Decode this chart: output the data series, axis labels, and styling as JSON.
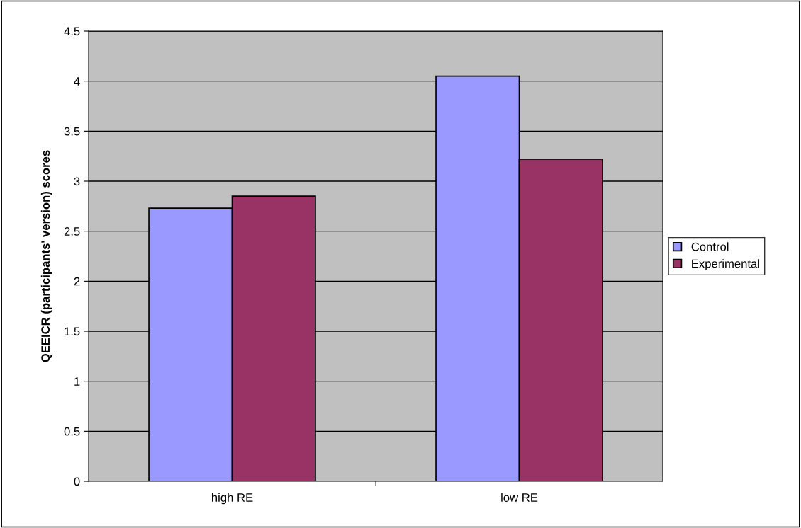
{
  "chart_data": {
    "type": "bar",
    "ylabel": "QEEICR (participants' version) scores",
    "categories": [
      "high RE",
      "low RE"
    ],
    "series": [
      {
        "name": "Control",
        "color": "#9999ff",
        "values": [
          2.73,
          4.05
        ]
      },
      {
        "name": "Experimental",
        "color": "#993366",
        "values": [
          2.85,
          3.22
        ]
      }
    ],
    "ylim": [
      0,
      4.5
    ],
    "yticks": [
      0,
      0.5,
      1,
      1.5,
      2,
      2.5,
      3,
      3.5,
      4,
      4.5
    ],
    "grid": "y",
    "legend": "right"
  }
}
